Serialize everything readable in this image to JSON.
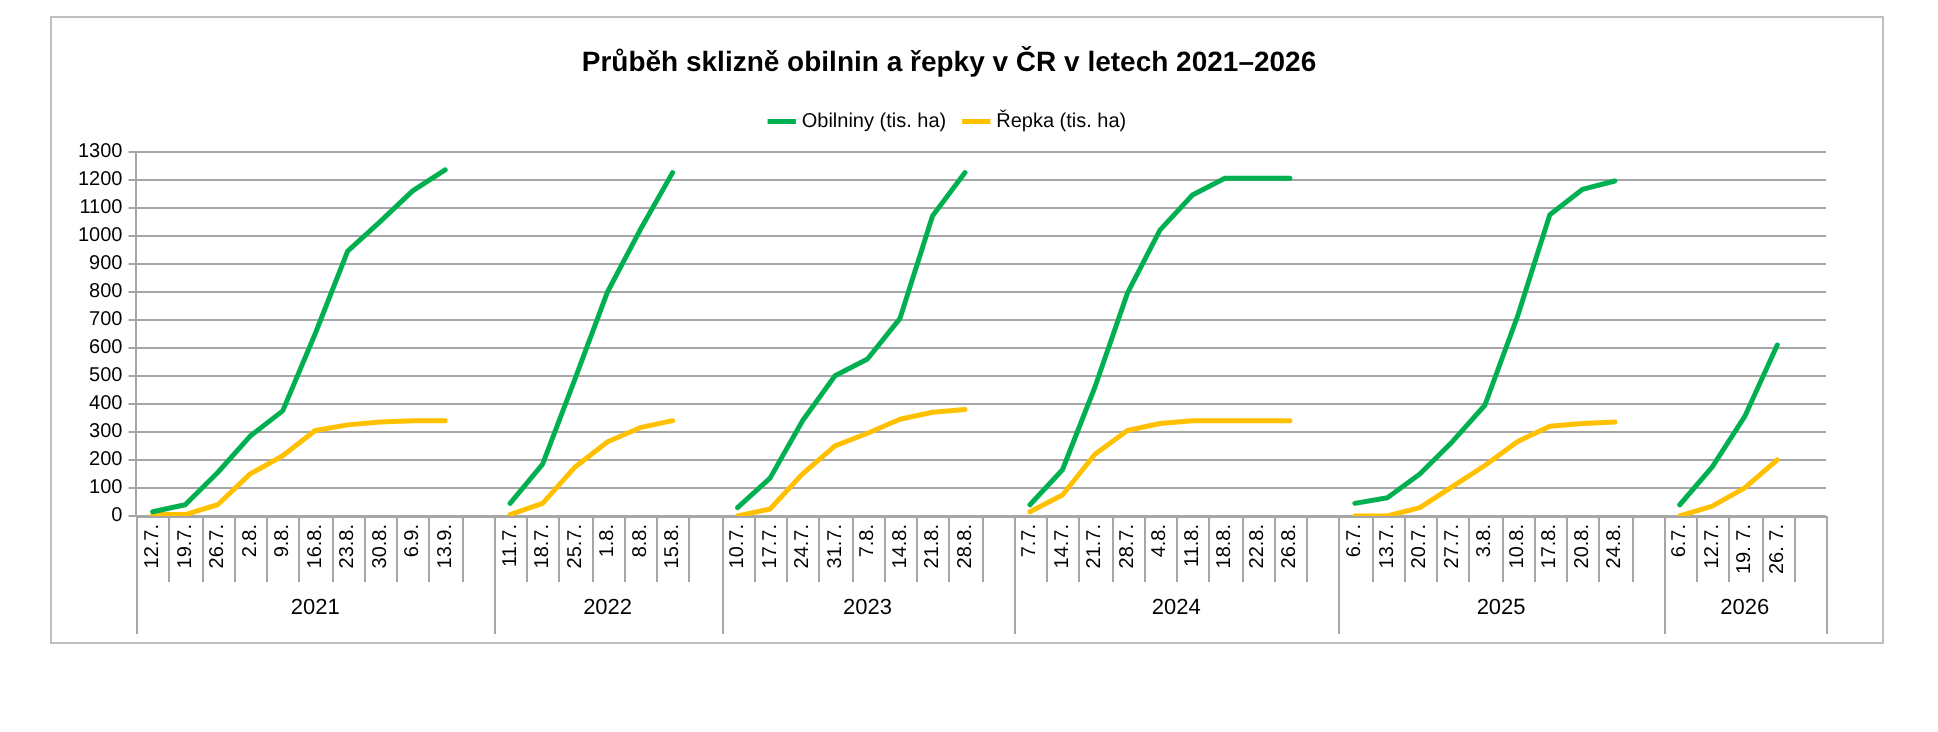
{
  "chart_data": {
    "type": "line",
    "title": "Průběh sklizně obilnin a řepky v ČR v letech 2021–2026",
    "categories": [
      "12.7.",
      "19.7.",
      "26.7.",
      "2.8.",
      "9.8.",
      "16.8.",
      "23.8.",
      "30.8.",
      "6.9.",
      "13.9.",
      null,
      "11.7.",
      "18.7.",
      "25.7.",
      "1.8.",
      "8.8.",
      "15.8.",
      null,
      "10.7.",
      "17.7.",
      "24.7.",
      "31.7.",
      "7.8.",
      "14.8.",
      "21.8.",
      "28.8.",
      null,
      "7.7.",
      "14.7.",
      "21.7.",
      "28.7.",
      "4.8.",
      "11.8.",
      "18.8.",
      "22.8.",
      "26.8.",
      null,
      "6.7.",
      "13.7.",
      "20.7.",
      "27.7.",
      "3.8.",
      "10.8.",
      "17.8.",
      "20.8.",
      "24.8.",
      null,
      "6.7.",
      "12.7.",
      "19. 7.",
      "26. 7.",
      null
    ],
    "series": [
      {
        "name": "Obilniny (tis. ha)",
        "color": "#00b050",
        "values": [
          15,
          40,
          155,
          285,
          375,
          650,
          945,
          1050,
          1160,
          1235,
          null,
          45,
          185,
          490,
          800,
          1020,
          1225,
          null,
          30,
          135,
          340,
          500,
          560,
          705,
          1070,
          1225,
          null,
          40,
          165,
          460,
          795,
          1020,
          1145,
          1205,
          1205,
          1205,
          null,
          45,
          65,
          150,
          265,
          395,
          710,
          1075,
          1165,
          1195,
          null,
          40,
          175,
          355,
          610,
          null
        ]
      },
      {
        "name": "Řepka (tis. ha)",
        "color": "#ffc000",
        "values": [
          5,
          5,
          40,
          150,
          215,
          305,
          325,
          335,
          340,
          340,
          null,
          5,
          45,
          175,
          265,
          315,
          340,
          null,
          0,
          25,
          150,
          250,
          295,
          345,
          370,
          380,
          null,
          15,
          75,
          220,
          305,
          330,
          340,
          340,
          340,
          340,
          null,
          0,
          0,
          30,
          105,
          180,
          265,
          320,
          330,
          335,
          null,
          0,
          35,
          100,
          200,
          null
        ]
      }
    ],
    "ylim": [
      0,
      1300
    ],
    "yticks": [
      0,
      100,
      200,
      300,
      400,
      500,
      600,
      700,
      800,
      900,
      1000,
      1100,
      1200,
      1300
    ],
    "grid": "y",
    "legend": "top",
    "marker": "none",
    "line_style": "solid",
    "annotations": [
      "2021",
      "2022",
      "2023",
      "2024",
      "2025",
      "2026"
    ]
  }
}
